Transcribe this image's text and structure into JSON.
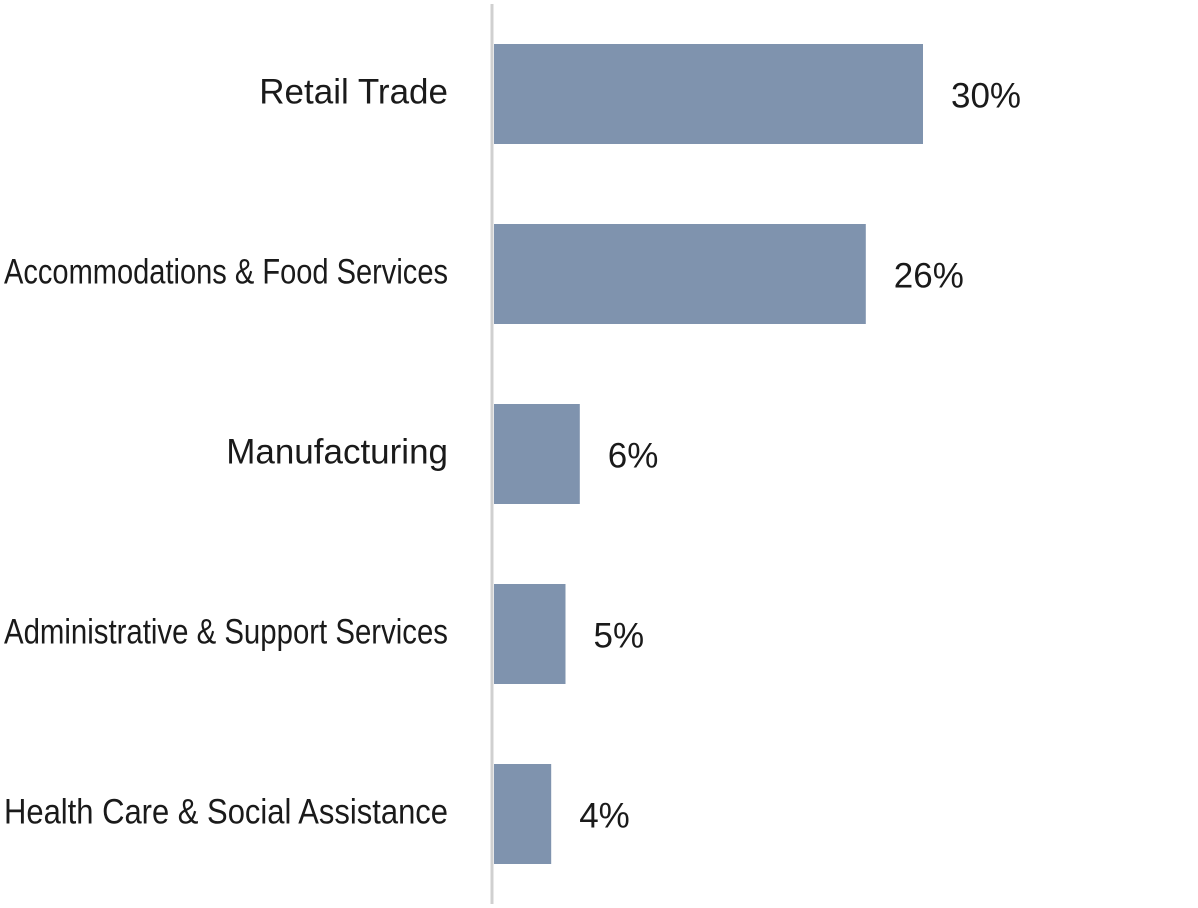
{
  "chart_data": {
    "type": "bar",
    "orientation": "horizontal",
    "categories": [
      "Retail Trade",
      "Accommodations & Food Services",
      "Manufacturing",
      "Administrative & Support Services",
      "Health Care & Social Assistance"
    ],
    "values": [
      30,
      26,
      6,
      5,
      4
    ],
    "value_labels": [
      "30%",
      "26%",
      "6%",
      "5%",
      "4%"
    ],
    "unit": "%",
    "title": "",
    "xlabel": "",
    "ylabel": "",
    "xlim": [
      0,
      30
    ],
    "grid": false,
    "legend": "none",
    "colors": {
      "bar": "#7f93ae",
      "axis": "#d0d0d0",
      "text": "#1a1a1a"
    }
  }
}
